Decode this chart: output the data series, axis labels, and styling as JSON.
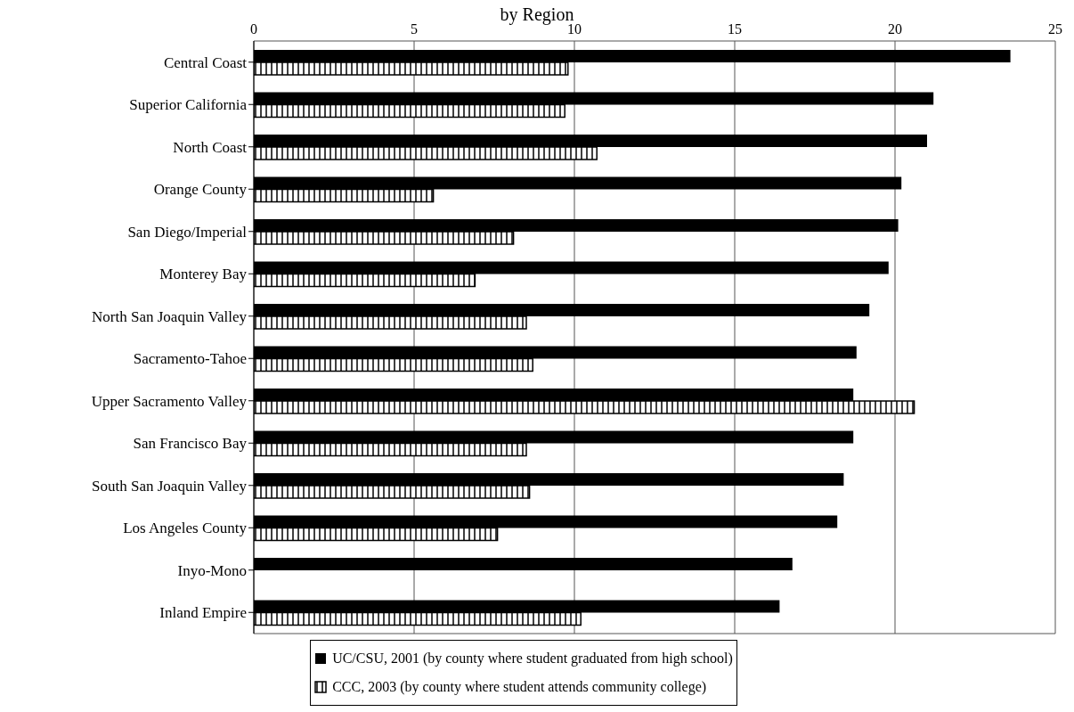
{
  "chart_data": {
    "type": "bar",
    "orientation": "horizontal",
    "title": "by Region",
    "categories": [
      "Central Coast",
      "Superior California",
      "North Coast",
      "Orange County",
      "San Diego/Imperial",
      "Monterey Bay",
      "North San Joaquin Valley",
      "Sacramento-Tahoe",
      "Upper Sacramento Valley",
      "San Francisco Bay",
      "South San Joaquin Valley",
      "Los Angeles County",
      "Inyo-Mono",
      "Inland Empire"
    ],
    "series": [
      {
        "name": "UC/CSU, 2001 (by county where student graduated from high school)",
        "color": "#000000",
        "values": [
          23.6,
          21.2,
          21.0,
          20.2,
          20.1,
          19.8,
          19.2,
          18.8,
          18.7,
          18.7,
          18.4,
          18.2,
          16.8,
          16.4
        ]
      },
      {
        "name": "CCC, 2003 (by county where student attends community college)",
        "color": "#000000",
        "values": [
          9.8,
          9.7,
          10.7,
          5.6,
          8.1,
          6.9,
          8.5,
          8.7,
          20.6,
          8.5,
          8.6,
          7.6,
          null,
          10.2
        ]
      }
    ],
    "xlim": [
      0,
      25
    ],
    "xticks": [
      0,
      5,
      10,
      15,
      20,
      25
    ],
    "grid": "x",
    "legend": "bottom"
  }
}
